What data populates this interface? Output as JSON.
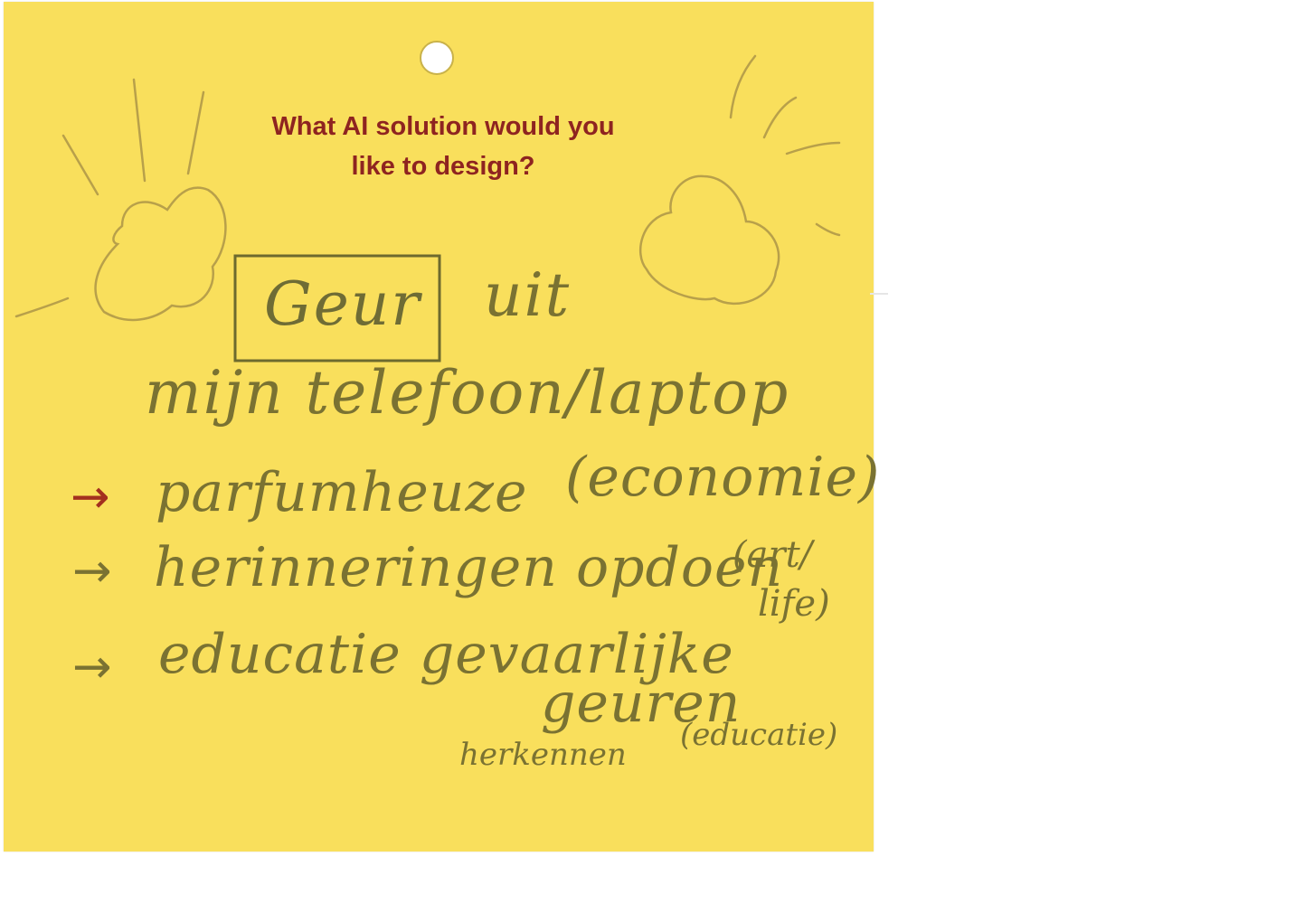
{
  "card": {
    "question_line1": "What AI solution would you",
    "question_line2": "like to design?"
  },
  "handwriting": {
    "boxed_word": "Geur",
    "line1_rest": "uit",
    "line2": "mijn telefoon/laptop",
    "items": [
      {
        "arrow": "→",
        "text": "parfumheuze",
        "tag": "(economie)"
      },
      {
        "arrow": "→",
        "text": "herinneringen opdoen",
        "tag_line1": "(art/",
        "tag_line2": "life)"
      },
      {
        "arrow": "→",
        "text": "educatie gevaarlijke",
        "cont1": "geuren",
        "cont2": "herkennen",
        "tag": "(educatie)"
      }
    ]
  },
  "colors": {
    "card": "#f9df5c",
    "question": "#8e2420",
    "ink": "#7a7232",
    "sketch": "#b8a04a",
    "red_arrow": "#a3301f"
  }
}
